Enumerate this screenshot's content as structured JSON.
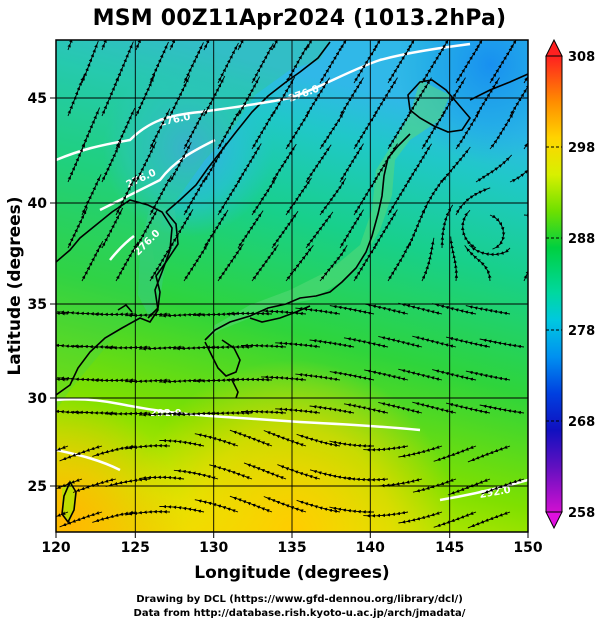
{
  "title": "MSM 00Z11Apr2024 (1013.2hPa)",
  "xlabel": "Longitude (degrees)",
  "ylabel": "Latitude  (degrees)",
  "credits": {
    "line1": "Drawing by DCL (https://www.gfd-dennou.org/library/dcl/)",
    "line2": "Data from http://database.rish.kyoto-u.ac.jp/arch/jmadata/"
  },
  "map": {
    "lon_range": [
      120,
      150
    ],
    "lat_range": [
      22.4,
      47.6
    ],
    "x_ticks": [
      120,
      125,
      130,
      135,
      140,
      145,
      150
    ],
    "y_ticks": [
      25,
      30,
      35,
      40,
      45
    ],
    "contour_labels": [
      "276.0",
      "276.0",
      "276.0",
      "276.0",
      "292.0",
      "292.0"
    ]
  },
  "colorbar": {
    "min": 258,
    "max": 308,
    "tick_labels": [
      "308",
      "298",
      "288",
      "278",
      "268",
      "258"
    ],
    "colors": [
      "#ff2020",
      "#ff8c00",
      "#ffd400",
      "#d8f000",
      "#6ee000",
      "#00d040",
      "#00d8a0",
      "#00c8e0",
      "#0090f0",
      "#0040e0",
      "#1010c0",
      "#6010c0",
      "#d010d0"
    ]
  }
}
